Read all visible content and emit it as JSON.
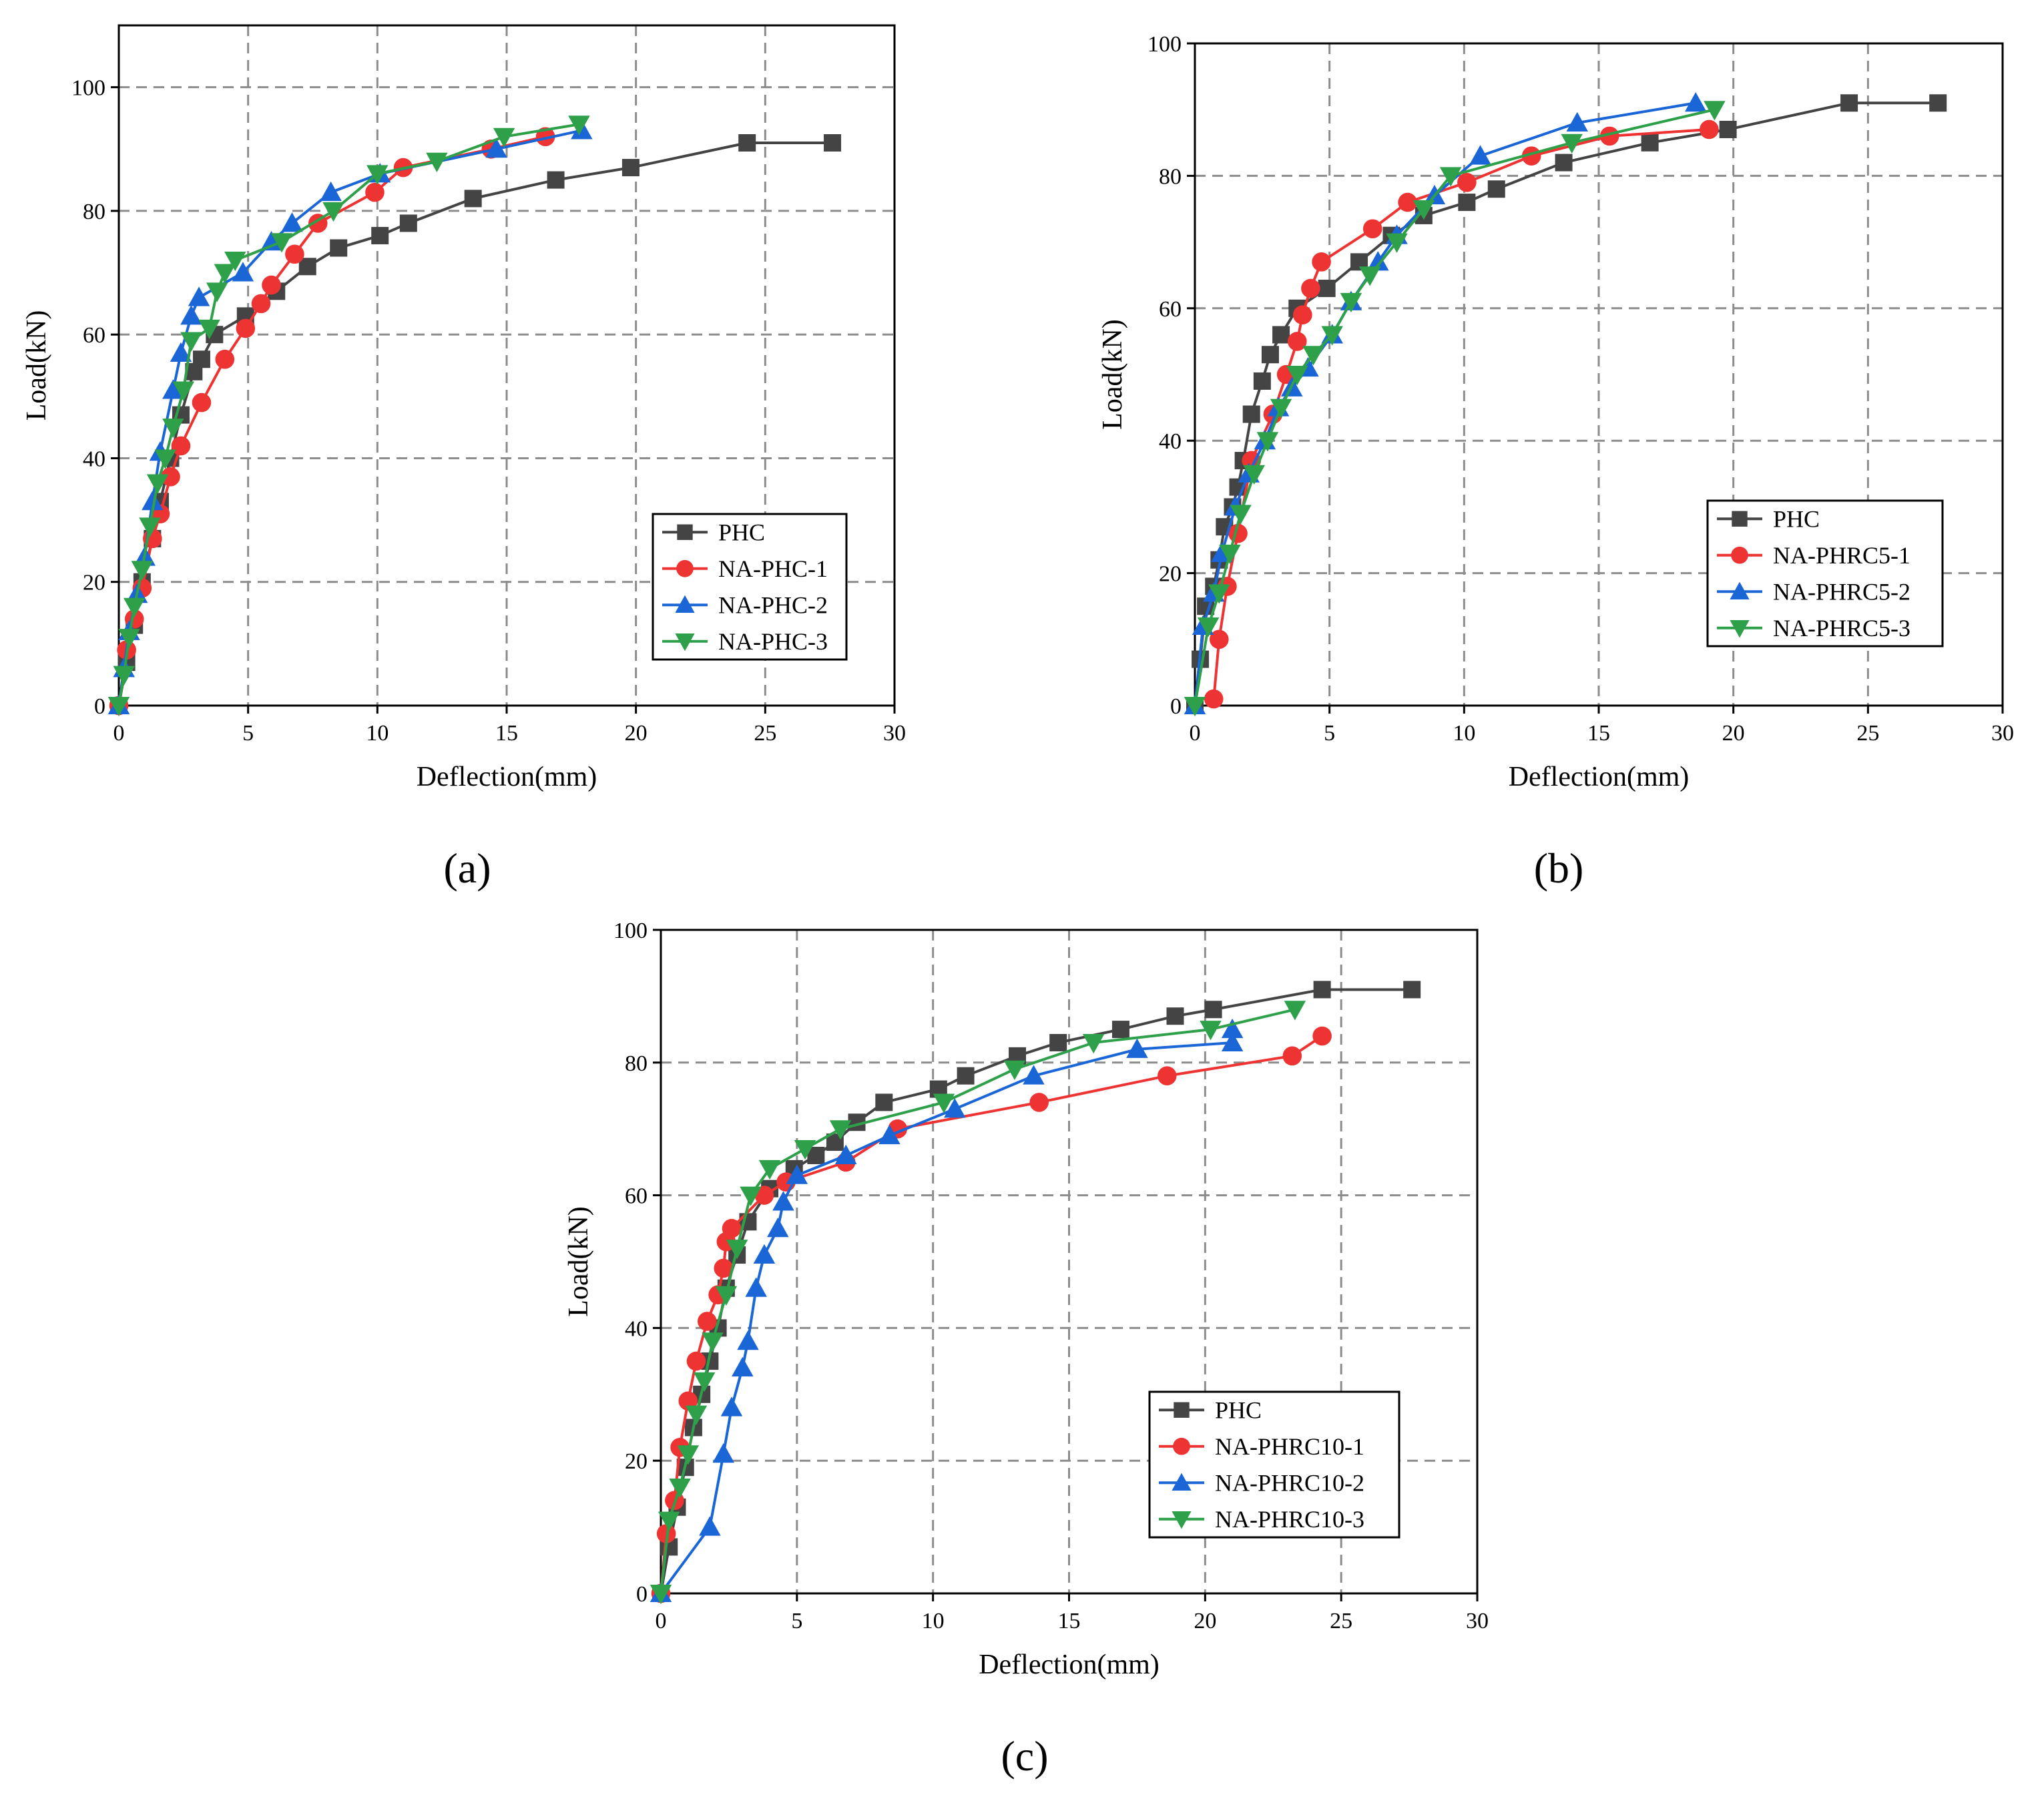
{
  "chart_data": [
    {
      "type": "line",
      "panel_label": "(a)",
      "xlabel": "Deflection(mm)",
      "ylabel": "Load(kN)",
      "xlim": [
        0,
        30
      ],
      "ylim": [
        0,
        110
      ],
      "xticks": [
        0,
        5,
        10,
        15,
        20,
        25,
        30
      ],
      "yticks": [
        0,
        20,
        40,
        60,
        80,
        100
      ],
      "grid": true,
      "legend_position": "bottom-right",
      "series": [
        {
          "name": "PHC",
          "color": "#444444",
          "marker": "square",
          "x": [
            0,
            0.3,
            0.6,
            0.9,
            1.3,
            1.6,
            2.0,
            2.4,
            2.9,
            3.2,
            3.7,
            4.9,
            6.1,
            7.3,
            8.5,
            10.1,
            11.2,
            13.7,
            16.9,
            19.8,
            24.3,
            27.6
          ],
          "y": [
            0,
            7,
            13,
            20,
            27,
            33,
            40,
            47,
            54,
            56,
            60,
            63,
            67,
            71,
            74,
            76,
            78,
            82,
            85,
            87,
            91,
            91
          ]
        },
        {
          "name": "NA-PHC-1",
          "color": "#ee3333",
          "marker": "circle",
          "x": [
            0,
            0.3,
            0.6,
            0.9,
            1.3,
            1.6,
            2.0,
            2.4,
            3.2,
            4.1,
            4.9,
            5.5,
            5.9,
            6.8,
            7.7,
            9.9,
            11.0,
            14.4,
            16.5
          ],
          "y": [
            0,
            9,
            14,
            19,
            27,
            31,
            37,
            42,
            49,
            56,
            61,
            65,
            68,
            73,
            78,
            83,
            87,
            90,
            92
          ]
        },
        {
          "name": "NA-PHC-2",
          "color": "#1a66d6",
          "marker": "triangle-up",
          "x": [
            0,
            0.2,
            0.4,
            0.7,
            1.0,
            1.3,
            1.6,
            2.1,
            2.4,
            2.8,
            3.1,
            4.8,
            5.9,
            6.7,
            8.2,
            10.1,
            14.6,
            17.9
          ],
          "y": [
            0,
            6,
            12,
            18,
            24,
            33,
            41,
            51,
            57,
            63,
            66,
            70,
            75,
            78,
            83,
            86,
            90,
            93
          ]
        },
        {
          "name": "NA-PHC-3",
          "color": "#2ea04a",
          "marker": "triangle-down",
          "x": [
            0,
            0.2,
            0.4,
            0.6,
            0.9,
            1.2,
            1.5,
            1.8,
            2.1,
            2.5,
            2.8,
            3.5,
            3.8,
            4.1,
            4.5,
            6.3,
            8.3,
            10.0,
            12.3,
            14.9,
            17.8
          ],
          "y": [
            0,
            5,
            11,
            16,
            22,
            29,
            36,
            40,
            45,
            51,
            59,
            61,
            67,
            70,
            72,
            75,
            80,
            86,
            88,
            92,
            94
          ]
        }
      ]
    },
    {
      "type": "line",
      "panel_label": "(b)",
      "xlabel": "Deflection(mm)",
      "ylabel": "Load(kN)",
      "xlim": [
        0,
        30
      ],
      "ylim": [
        0,
        100
      ],
      "xticks": [
        0,
        5,
        10,
        15,
        20,
        25,
        30
      ],
      "yticks": [
        0,
        20,
        40,
        60,
        80,
        100
      ],
      "grid": true,
      "legend_position": "bottom-right",
      "series": [
        {
          "name": "PHC",
          "color": "#444444",
          "marker": "square",
          "x": [
            0,
            0.2,
            0.4,
            0.7,
            0.9,
            1.1,
            1.4,
            1.6,
            1.8,
            2.1,
            2.5,
            2.8,
            3.2,
            3.8,
            4.9,
            6.1,
            7.3,
            8.5,
            10.1,
            11.2,
            13.7,
            16.9,
            19.8,
            24.3,
            27.6
          ],
          "y": [
            0,
            7,
            15,
            18,
            22,
            27,
            30,
            33,
            37,
            44,
            49,
            53,
            56,
            60,
            63,
            67,
            71,
            74,
            76,
            78,
            82,
            85,
            87,
            91,
            91
          ]
        },
        {
          "name": "NA-PHRC5-1",
          "color": "#ee3333",
          "marker": "circle",
          "x": [
            0.7,
            0.9,
            1.2,
            1.6,
            2.1,
            2.9,
            3.4,
            3.8,
            4.0,
            4.3,
            4.7,
            6.6,
            7.9,
            10.1,
            12.5,
            15.4,
            19.1
          ],
          "y": [
            1,
            10,
            18,
            26,
            37,
            44,
            50,
            55,
            59,
            63,
            67,
            72,
            76,
            79,
            83,
            86,
            87
          ]
        },
        {
          "name": "NA-PHRC5-2",
          "color": "#1a66d6",
          "marker": "triangle-up",
          "x": [
            0,
            0.3,
            0.7,
            1.0,
            1.5,
            2.0,
            2.6,
            3.1,
            3.6,
            4.2,
            5.1,
            5.8,
            6.8,
            7.5,
            8.9,
            10.6,
            14.2,
            18.6
          ],
          "y": [
            0,
            12,
            17,
            23,
            30,
            35,
            40,
            45,
            48,
            51,
            56,
            61,
            67,
            71,
            77,
            83,
            88,
            91
          ]
        },
        {
          "name": "NA-PHRC5-3",
          "color": "#2ea04a",
          "marker": "triangle-down",
          "x": [
            0,
            0.5,
            0.9,
            1.3,
            1.7,
            2.2,
            2.7,
            3.2,
            3.8,
            4.4,
            5.1,
            5.8,
            6.5,
            7.5,
            8.5,
            9.5,
            14.0,
            19.3
          ],
          "y": [
            0,
            12,
            17,
            23,
            29,
            35,
            40,
            45,
            50,
            53,
            56,
            61,
            65,
            70,
            75,
            80,
            85,
            90
          ]
        }
      ]
    },
    {
      "type": "line",
      "panel_label": "(c)",
      "xlabel": "Deflection(mm)",
      "ylabel": "Load(kN)",
      "xlim": [
        0,
        30
      ],
      "ylim": [
        0,
        100
      ],
      "xticks": [
        0,
        5,
        10,
        15,
        20,
        25,
        30
      ],
      "yticks": [
        0,
        20,
        40,
        60,
        80,
        100
      ],
      "grid": true,
      "legend_position": "bottom-right",
      "series": [
        {
          "name": "PHC",
          "color": "#444444",
          "marker": "square",
          "x": [
            0,
            0.3,
            0.6,
            0.9,
            1.2,
            1.5,
            1.8,
            2.1,
            2.4,
            2.8,
            3.2,
            4.0,
            4.9,
            5.7,
            6.4,
            7.2,
            8.2,
            10.2,
            11.2,
            13.1,
            14.6,
            16.9,
            18.9,
            20.3,
            24.3,
            27.6
          ],
          "y": [
            0,
            7,
            13,
            19,
            25,
            30,
            35,
            40,
            46,
            51,
            56,
            61,
            64,
            66,
            68,
            71,
            74,
            76,
            78,
            81,
            83,
            85,
            87,
            88,
            91,
            91
          ]
        },
        {
          "name": "NA-PHRC10-1",
          "color": "#ee3333",
          "marker": "circle",
          "x": [
            0,
            0.2,
            0.5,
            0.7,
            1.0,
            1.3,
            1.7,
            2.1,
            2.3,
            2.4,
            2.6,
            3.8,
            4.6,
            6.8,
            8.7,
            13.9,
            18.6,
            23.2,
            24.3
          ],
          "y": [
            0,
            9,
            14,
            22,
            29,
            35,
            41,
            45,
            49,
            53,
            55,
            60,
            62,
            65,
            70,
            74,
            78,
            81,
            84
          ]
        },
        {
          "name": "NA-PHRC10-2",
          "color": "#1a66d6",
          "marker": "triangle-up",
          "x": [
            0,
            1.8,
            2.3,
            2.6,
            3.0,
            3.2,
            3.5,
            3.8,
            4.3,
            4.5,
            5.0,
            6.8,
            8.4,
            10.8,
            13.7,
            17.5,
            21.0,
            21.0
          ],
          "y": [
            0,
            10,
            21,
            28,
            34,
            38,
            46,
            51,
            55,
            59,
            63,
            66,
            69,
            73,
            78,
            82,
            83,
            85
          ]
        },
        {
          "name": "NA-PHRC10-3",
          "color": "#2ea04a",
          "marker": "triangle-down",
          "x": [
            0,
            0.3,
            0.7,
            1.0,
            1.3,
            1.6,
            1.9,
            2.4,
            2.8,
            3.3,
            4.0,
            5.3,
            6.6,
            10.4,
            13.0,
            15.9,
            20.2,
            23.3
          ],
          "y": [
            0,
            11,
            16,
            21,
            27,
            32,
            38,
            45,
            52,
            60,
            64,
            67,
            70,
            74,
            79,
            83,
            85,
            88
          ]
        }
      ]
    }
  ]
}
